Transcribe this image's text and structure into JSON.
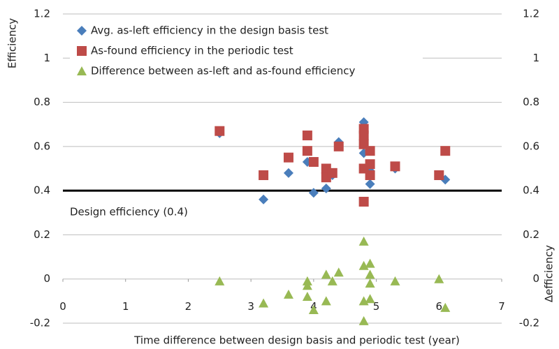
{
  "chart_data": {
    "type": "scatter",
    "x_label": "Time difference between design basis and periodic test (year)",
    "y_label": "Efficiency",
    "y2_label": "∆efficiency",
    "xlim": [
      0,
      7
    ],
    "xticks": [
      0,
      1,
      2,
      3,
      4,
      5,
      6,
      7
    ],
    "ylim": [
      -0.2,
      1.2
    ],
    "yticks": [
      -0.2,
      0,
      0.2,
      0.4,
      0.6,
      0.8,
      1,
      1.2
    ],
    "y2lim": [
      -0.2,
      1.2
    ],
    "y2ticks": [
      -0.2,
      0,
      0.2,
      0.4,
      0.6,
      0.8,
      1,
      1.2
    ],
    "grid": true,
    "legend": "upper left",
    "reference_line": {
      "value": 0.4,
      "label": "Design efficiency (0.4)",
      "color": "#000000"
    },
    "series": [
      {
        "name": "Avg. as-left efficiency in the design basis test",
        "color": "#4a7ebb",
        "marker": "diamond",
        "x": [
          2.5,
          3.2,
          3.6,
          3.9,
          4.0,
          4.2,
          4.3,
          4.4,
          4.8,
          4.8,
          4.9,
          4.9,
          5.3,
          6.0,
          6.1
        ],
        "values": [
          0.66,
          0.36,
          0.48,
          0.53,
          0.39,
          0.41,
          0.47,
          0.62,
          0.71,
          0.57,
          0.43,
          0.49,
          0.5,
          0.47,
          0.45
        ]
      },
      {
        "name": "As-found efficiency in the periodic test",
        "color": "#be4b48",
        "marker": "square",
        "x": [
          2.5,
          3.2,
          3.6,
          3.9,
          3.9,
          4.0,
          4.2,
          4.2,
          4.3,
          4.4,
          4.8,
          4.8,
          4.8,
          4.8,
          4.8,
          4.9,
          4.9,
          4.9,
          5.3,
          6.0,
          6.1
        ],
        "values": [
          0.67,
          0.47,
          0.55,
          0.65,
          0.58,
          0.53,
          0.5,
          0.46,
          0.48,
          0.6,
          0.68,
          0.65,
          0.61,
          0.5,
          0.35,
          0.58,
          0.52,
          0.47,
          0.51,
          0.47,
          0.58
        ]
      },
      {
        "name": "Difference between as-left and as-found efficiency",
        "color": "#98b954",
        "marker": "triangle",
        "axis": "y2",
        "x": [
          2.5,
          3.2,
          3.6,
          3.9,
          3.9,
          3.9,
          4.0,
          4.2,
          4.2,
          4.3,
          4.4,
          4.8,
          4.8,
          4.8,
          4.8,
          4.9,
          4.9,
          4.9,
          4.9,
          5.3,
          6.0,
          6.1
        ],
        "values": [
          -0.01,
          -0.11,
          -0.07,
          -0.01,
          -0.03,
          -0.08,
          -0.14,
          0.02,
          -0.1,
          -0.01,
          0.03,
          0.17,
          0.06,
          -0.1,
          -0.19,
          0.07,
          0.02,
          -0.02,
          -0.09,
          -0.01,
          0.0,
          -0.13
        ]
      }
    ]
  }
}
